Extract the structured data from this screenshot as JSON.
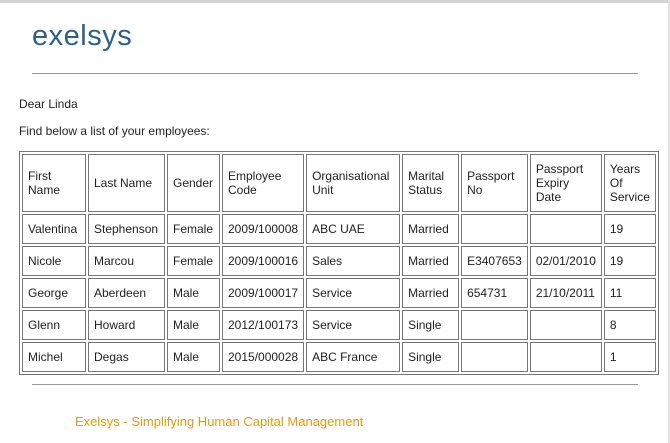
{
  "header": {
    "logo": "exelsys"
  },
  "greeting": "Dear Linda",
  "intro": "Find below a list of your employees:",
  "table": {
    "columns": [
      "First Name",
      "Last Name",
      "Gender",
      "Employee Code",
      "Organisational Unit",
      "Marital Status",
      "Passport No",
      "Passport Expiry Date",
      "Years Of Service"
    ],
    "rows": [
      [
        "Valentina",
        "Stephenson",
        "Female",
        "2009/100008",
        "ABC UAE",
        "Married",
        null,
        null,
        "19"
      ],
      [
        "Nicole",
        "Marcou",
        "Female",
        "2009/100016",
        "Sales",
        "Married",
        "E3407653",
        "02/01/2010",
        "19"
      ],
      [
        "George",
        "Aberdeen",
        "Male",
        "2009/100017",
        "Service",
        "Married",
        "654731",
        "21/10/2011",
        "11"
      ],
      [
        "Glenn",
        "Howard",
        "Male",
        "2012/100173",
        "Service",
        "Single",
        null,
        null,
        "8"
      ],
      [
        "Michel",
        "Degas",
        "Male",
        "2015/000028",
        "ABC France",
        "Single",
        null,
        null,
        "1"
      ]
    ]
  },
  "footer": "Exelsys - Simplifying Human Capital Management"
}
